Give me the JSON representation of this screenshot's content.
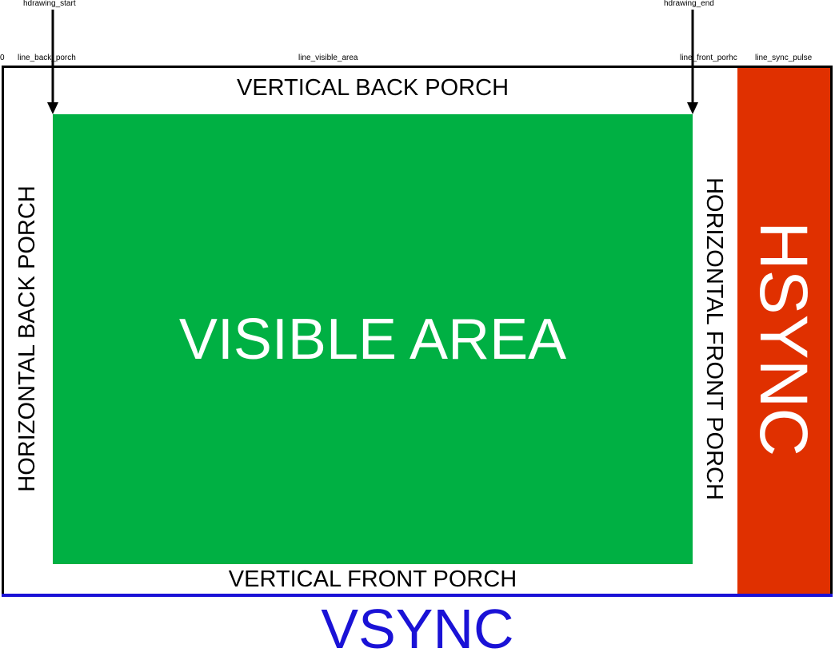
{
  "markers": {
    "hdrawing_start": "hdrawing_start",
    "hdrawing_end": "hdrawing_end"
  },
  "timeline": {
    "zero": "0",
    "line_back_porch": "line_back_porch",
    "line_visible_area": "line_visible_area",
    "line_front_porch": "line_front_porhc",
    "line_sync_pulse": "line_sync_pulse"
  },
  "regions": {
    "vertical_back_porch": "VERTICAL BACK PORCH",
    "vertical_front_porch": "VERTICAL FRONT PORCH",
    "horizontal_back_porch": "HORIZONTAL BACK PORCH",
    "horizontal_front_porch": "HORIZONTAL FRONT PORCH",
    "visible_area": "VISIBLE AREA",
    "hsync": "HSYNC",
    "vsync": "VSYNC"
  },
  "colors": {
    "visible_area": "#00b043",
    "hsync": "#e03000",
    "vsync": "#1a12d6",
    "frame": "#000000"
  }
}
